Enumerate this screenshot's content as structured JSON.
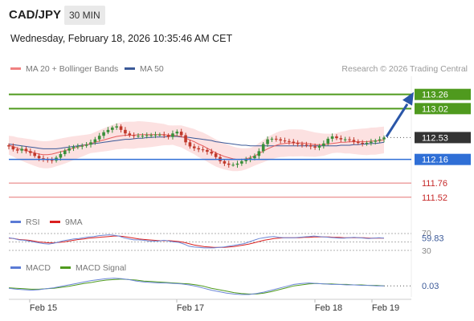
{
  "header": {
    "symbol": "CAD/JPY",
    "timeframe": "30 MIN",
    "timestamp": "Wednesday, February 18, 2026 10:35:46 AM CET"
  },
  "legend": {
    "ma20_label": "MA 20 + Bollinger Bands",
    "ma50_label": "MA 50",
    "copyright": "Research © 2026 Trading Central",
    "rsi_label": "RSI",
    "rsi_ma_label": "9MA",
    "macd_label": "MACD",
    "macd_signal_label": "MACD Signal"
  },
  "colors": {
    "candle_up": "#3a8f3a",
    "candle_down": "#c0392b",
    "ma20": "#e85d5d",
    "ma50": "#3b5998",
    "bollinger_fill": "#fbd9d9",
    "resistance": "#4f9a1e",
    "support": "#2f6fd6",
    "target_line": "#e57373",
    "arrow": "#2a56a8"
  },
  "chart_data": {
    "type": "candlestick",
    "x_ticks": [
      "Feb 15",
      "Feb 17",
      "Feb 18",
      "Feb 19"
    ],
    "price_axis": {
      "min": 111.3,
      "max": 113.5
    },
    "last_price": 112.53,
    "levels": [
      {
        "value": 113.26,
        "label": "113.26",
        "kind": "resistance"
      },
      {
        "value": 113.02,
        "label": "113.02",
        "kind": "resistance"
      },
      {
        "value": 112.16,
        "label": "112.16",
        "kind": "support"
      },
      {
        "value": 111.76,
        "label": "111.76",
        "kind": "target"
      },
      {
        "value": 111.52,
        "label": "111.52",
        "kind": "target"
      }
    ],
    "projection": {
      "from": 112.53,
      "to": 113.26
    },
    "price_series": [
      112.38,
      112.33,
      112.31,
      112.34,
      112.3,
      112.27,
      112.22,
      112.18,
      112.16,
      112.15,
      112.14,
      112.19,
      112.25,
      112.31,
      112.35,
      112.37,
      112.38,
      112.39,
      112.41,
      112.45,
      112.5,
      112.56,
      112.62,
      112.66,
      112.7,
      112.72,
      112.66,
      112.6,
      112.57,
      112.56,
      112.56,
      112.56,
      112.57,
      112.57,
      112.58,
      112.58,
      112.57,
      112.54,
      112.6,
      112.63,
      112.57,
      112.45,
      112.38,
      112.35,
      112.33,
      112.32,
      112.29,
      112.26,
      112.2,
      112.13,
      112.09,
      112.07,
      112.07,
      112.09,
      112.13,
      112.16,
      112.18,
      112.22,
      112.3,
      112.42,
      112.5,
      112.51,
      112.5,
      112.48,
      112.47,
      112.46,
      112.44,
      112.42,
      112.41,
      112.4,
      112.38,
      112.36,
      112.39,
      112.43,
      112.51,
      112.55,
      112.52,
      112.5,
      112.5,
      112.49,
      112.46,
      112.44,
      112.43,
      112.44,
      112.46,
      112.48,
      112.5,
      112.53
    ],
    "ma20_series": [
      112.4,
      112.38,
      112.35,
      112.33,
      112.31,
      112.29,
      112.27,
      112.25,
      112.24,
      112.24,
      112.25,
      112.27,
      112.29,
      112.31,
      112.33,
      112.35,
      112.37,
      112.39,
      112.41,
      112.43,
      112.45,
      112.47,
      112.49,
      112.51,
      112.53,
      112.55,
      112.56,
      112.57,
      112.57,
      112.57,
      112.58,
      112.58,
      112.58,
      112.58,
      112.58,
      112.58,
      112.58,
      112.57,
      112.57,
      112.56,
      112.55,
      112.52,
      112.49,
      112.46,
      112.42,
      112.39,
      112.35,
      112.31,
      112.27,
      112.24,
      112.21,
      112.19,
      112.17,
      112.16,
      112.16,
      112.17,
      112.19,
      112.22,
      112.26,
      112.3,
      112.34,
      112.37,
      112.4,
      112.42,
      112.43,
      112.44,
      112.44,
      112.44,
      112.44,
      112.43,
      112.42,
      112.41,
      112.41,
      112.41,
      112.42,
      112.43,
      112.44,
      112.45,
      112.45,
      112.46,
      112.46,
      112.46,
      112.46,
      112.46,
      112.47,
      112.47,
      112.48,
      112.49
    ],
    "ma50_series": [
      112.42,
      112.41,
      112.4,
      112.39,
      112.38,
      112.37,
      112.36,
      112.35,
      112.34,
      112.34,
      112.34,
      112.34,
      112.35,
      112.36,
      112.37,
      112.38,
      112.39,
      112.4,
      112.41,
      112.42,
      112.43,
      112.44,
      112.45,
      112.46,
      112.47,
      112.48,
      112.49,
      112.5,
      112.5,
      112.51,
      112.52,
      112.52,
      112.53,
      112.53,
      112.54,
      112.54,
      112.54,
      112.55,
      112.55,
      112.55,
      112.54,
      112.54,
      112.53,
      112.52,
      112.51,
      112.5,
      112.49,
      112.48,
      112.46,
      112.45,
      112.44,
      112.43,
      112.42,
      112.41,
      112.4,
      112.4,
      112.39,
      112.39,
      112.39,
      112.39,
      112.39,
      112.39,
      112.39,
      112.39,
      112.39,
      112.39,
      112.39,
      112.39,
      112.39,
      112.39,
      112.39,
      112.39,
      112.39,
      112.39,
      112.39,
      112.39,
      112.39,
      112.4,
      112.4,
      112.4,
      112.41,
      112.41,
      112.42,
      112.42,
      112.43,
      112.43,
      112.44,
      112.45
    ],
    "rsi": {
      "current": 59.83,
      "levels": [
        70,
        30
      ],
      "rsi_series": [
        60,
        58,
        55,
        54,
        52,
        50,
        48,
        46,
        45,
        47,
        50,
        53,
        55,
        57,
        58,
        60,
        62,
        63,
        65,
        66,
        67,
        66,
        64,
        60,
        57,
        55,
        55,
        54,
        52,
        52,
        52,
        54,
        52,
        50,
        49,
        45,
        40,
        38,
        37,
        36,
        36,
        36,
        37,
        38,
        40,
        42,
        44,
        46,
        50,
        54,
        58,
        60,
        62,
        63,
        61,
        60,
        60,
        60,
        61,
        62,
        63,
        64,
        63,
        62,
        61,
        60,
        59,
        59,
        60,
        61,
        60,
        59,
        58,
        59,
        60,
        59
      ],
      "ma_series": [
        59,
        58,
        56,
        55,
        54,
        52,
        50,
        49,
        48,
        48,
        49,
        50,
        52,
        54,
        56,
        57,
        59,
        60,
        61,
        62,
        63,
        64,
        64,
        63,
        61,
        59,
        57,
        56,
        55,
        54,
        53,
        53,
        53,
        52,
        51,
        49,
        46,
        43,
        41,
        39,
        38,
        37,
        37,
        37,
        38,
        39,
        41,
        43,
        45,
        48,
        51,
        54,
        56,
        58,
        59,
        60,
        60,
        60,
        60,
        61,
        61,
        62,
        62,
        62,
        62,
        61,
        61,
        60,
        60,
        60,
        60,
        60,
        59,
        59,
        59,
        59
      ]
    },
    "macd": {
      "current": 0.03,
      "macd_series": [
        -0.02,
        -0.04,
        -0.05,
        -0.06,
        -0.05,
        -0.03,
        -0.01,
        0.02,
        0.05,
        0.08,
        0.11,
        0.14,
        0.16,
        0.18,
        0.19,
        0.18,
        0.16,
        0.13,
        0.11,
        0.1,
        0.09,
        0.09,
        0.08,
        0.07,
        0.05,
        0.02,
        -0.02,
        -0.06,
        -0.09,
        -0.12,
        -0.14,
        -0.15,
        -0.15,
        -0.13,
        -0.1,
        -0.06,
        -0.02,
        0.02,
        0.06,
        0.08,
        0.09,
        0.08,
        0.07,
        0.06,
        0.06,
        0.05,
        0.05,
        0.04,
        0.04,
        0.03,
        0.03
      ],
      "signal_series": [
        -0.01,
        -0.02,
        -0.03,
        -0.04,
        -0.04,
        -0.03,
        -0.02,
        0,
        0.02,
        0.05,
        0.08,
        0.1,
        0.13,
        0.15,
        0.16,
        0.17,
        0.16,
        0.15,
        0.13,
        0.12,
        0.11,
        0.1,
        0.09,
        0.08,
        0.07,
        0.05,
        0.02,
        -0.02,
        -0.05,
        -0.08,
        -0.11,
        -0.13,
        -0.14,
        -0.14,
        -0.12,
        -0.09,
        -0.05,
        -0.01,
        0.03,
        0.05,
        0.07,
        0.08,
        0.07,
        0.07,
        0.06,
        0.06,
        0.05,
        0.05,
        0.04,
        0.04,
        0.03
      ]
    }
  }
}
